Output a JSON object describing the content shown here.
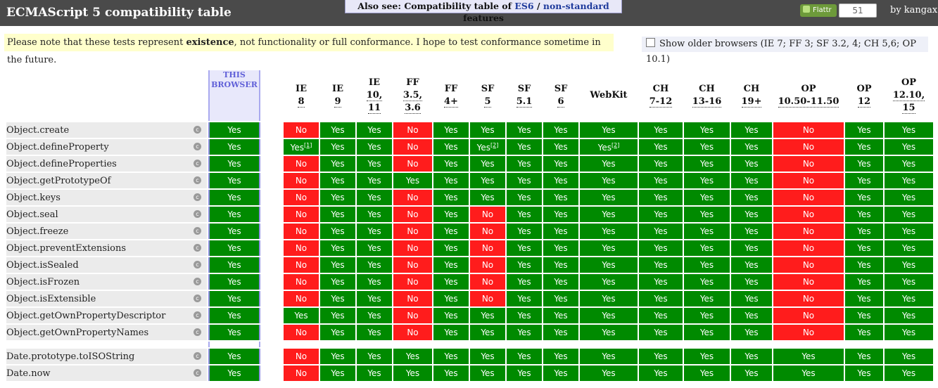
{
  "header": {
    "title": "ECMAScript 5 compatibility table",
    "also_see_prefix": "Also see: Compatibility table of ",
    "also_see_es6": "ES6",
    "also_see_sep": " / ",
    "also_see_nonstandard": "non-standard",
    "also_see_suffix": " features",
    "flattr_label": "Flattr",
    "flattr_count": "51",
    "byline": "by kangax"
  },
  "note": {
    "prefix": "Please note that these tests represent ",
    "emphasis": "existence",
    "suffix": ", not functionality or full conformance. I hope to test conformance sometime in the future."
  },
  "older_browsers": {
    "label": "Show older browsers (IE 7; FF 3; SF 3.2, 4; CH 5,6; OP 10.1)"
  },
  "columns": [
    {
      "id": "this",
      "lines": [
        "THIS",
        "BROWSER"
      ]
    },
    {
      "id": "ie8",
      "lines": [
        "IE",
        "8"
      ]
    },
    {
      "id": "ie9",
      "lines": [
        "IE",
        "9"
      ]
    },
    {
      "id": "ie10",
      "lines": [
        "IE",
        "10,",
        "11"
      ]
    },
    {
      "id": "ff35",
      "lines": [
        "FF",
        "3.5,",
        "3.6"
      ]
    },
    {
      "id": "ff4",
      "lines": [
        "FF",
        "4+"
      ]
    },
    {
      "id": "sf5",
      "lines": [
        "SF",
        "5"
      ]
    },
    {
      "id": "sf51",
      "lines": [
        "SF",
        "5.1"
      ]
    },
    {
      "id": "sf6",
      "lines": [
        "SF",
        "6"
      ]
    },
    {
      "id": "webkit",
      "lines": [
        "WebKit"
      ]
    },
    {
      "id": "ch7",
      "lines": [
        "CH",
        "7-12"
      ]
    },
    {
      "id": "ch13",
      "lines": [
        "CH",
        "13-16"
      ]
    },
    {
      "id": "ch19",
      "lines": [
        "CH",
        "19+"
      ]
    },
    {
      "id": "op1050",
      "lines": [
        "OP",
        "10.50-11.50"
      ]
    },
    {
      "id": "op12",
      "lines": [
        "OP",
        "12"
      ]
    },
    {
      "id": "op1210",
      "lines": [
        "OP",
        "12.10,",
        "15"
      ]
    }
  ],
  "rows": [
    {
      "name": "Object.create",
      "cells": [
        "Yes",
        "No",
        "Yes",
        "Yes",
        "No",
        "Yes",
        "Yes",
        "Yes",
        "Yes",
        "Yes",
        "Yes",
        "Yes",
        "Yes",
        "No",
        "Yes",
        "Yes"
      ]
    },
    {
      "name": "Object.defineProperty",
      "cells": [
        "Yes",
        "Yes[1]",
        "Yes",
        "Yes",
        "No",
        "Yes",
        "Yes[2]",
        "Yes",
        "Yes",
        "Yes[2]",
        "Yes",
        "Yes",
        "Yes",
        "No",
        "Yes",
        "Yes"
      ]
    },
    {
      "name": "Object.defineProperties",
      "cells": [
        "Yes",
        "No",
        "Yes",
        "Yes",
        "No",
        "Yes",
        "Yes",
        "Yes",
        "Yes",
        "Yes",
        "Yes",
        "Yes",
        "Yes",
        "No",
        "Yes",
        "Yes"
      ]
    },
    {
      "name": "Object.getPrototypeOf",
      "cells": [
        "Yes",
        "No",
        "Yes",
        "Yes",
        "Yes",
        "Yes",
        "Yes",
        "Yes",
        "Yes",
        "Yes",
        "Yes",
        "Yes",
        "Yes",
        "No",
        "Yes",
        "Yes"
      ]
    },
    {
      "name": "Object.keys",
      "cells": [
        "Yes",
        "No",
        "Yes",
        "Yes",
        "No",
        "Yes",
        "Yes",
        "Yes",
        "Yes",
        "Yes",
        "Yes",
        "Yes",
        "Yes",
        "No",
        "Yes",
        "Yes"
      ]
    },
    {
      "name": "Object.seal",
      "cells": [
        "Yes",
        "No",
        "Yes",
        "Yes",
        "No",
        "Yes",
        "No",
        "Yes",
        "Yes",
        "Yes",
        "Yes",
        "Yes",
        "Yes",
        "No",
        "Yes",
        "Yes"
      ]
    },
    {
      "name": "Object.freeze",
      "cells": [
        "Yes",
        "No",
        "Yes",
        "Yes",
        "No",
        "Yes",
        "No",
        "Yes",
        "Yes",
        "Yes",
        "Yes",
        "Yes",
        "Yes",
        "No",
        "Yes",
        "Yes"
      ]
    },
    {
      "name": "Object.preventExtensions",
      "cells": [
        "Yes",
        "No",
        "Yes",
        "Yes",
        "No",
        "Yes",
        "No",
        "Yes",
        "Yes",
        "Yes",
        "Yes",
        "Yes",
        "Yes",
        "No",
        "Yes",
        "Yes"
      ]
    },
    {
      "name": "Object.isSealed",
      "cells": [
        "Yes",
        "No",
        "Yes",
        "Yes",
        "No",
        "Yes",
        "No",
        "Yes",
        "Yes",
        "Yes",
        "Yes",
        "Yes",
        "Yes",
        "No",
        "Yes",
        "Yes"
      ]
    },
    {
      "name": "Object.isFrozen",
      "cells": [
        "Yes",
        "No",
        "Yes",
        "Yes",
        "No",
        "Yes",
        "No",
        "Yes",
        "Yes",
        "Yes",
        "Yes",
        "Yes",
        "Yes",
        "No",
        "Yes",
        "Yes"
      ]
    },
    {
      "name": "Object.isExtensible",
      "cells": [
        "Yes",
        "No",
        "Yes",
        "Yes",
        "No",
        "Yes",
        "No",
        "Yes",
        "Yes",
        "Yes",
        "Yes",
        "Yes",
        "Yes",
        "No",
        "Yes",
        "Yes"
      ]
    },
    {
      "name": "Object.getOwnPropertyDescriptor",
      "cells": [
        "Yes",
        "Yes",
        "Yes",
        "Yes",
        "No",
        "Yes",
        "Yes",
        "Yes",
        "Yes",
        "Yes",
        "Yes",
        "Yes",
        "Yes",
        "No",
        "Yes",
        "Yes"
      ]
    },
    {
      "name": "Object.getOwnPropertyNames",
      "cells": [
        "Yes",
        "No",
        "Yes",
        "Yes",
        "No",
        "Yes",
        "Yes",
        "Yes",
        "Yes",
        "Yes",
        "Yes",
        "Yes",
        "Yes",
        "No",
        "Yes",
        "Yes"
      ]
    },
    {
      "gap": true
    },
    {
      "name": "Date.prototype.toISOString",
      "cells": [
        "Yes",
        "No",
        "Yes",
        "Yes",
        "Yes",
        "Yes",
        "Yes",
        "Yes",
        "Yes",
        "Yes",
        "Yes",
        "Yes",
        "Yes",
        "Yes",
        "Yes",
        "Yes"
      ]
    },
    {
      "name": "Date.now",
      "cells": [
        "Yes",
        "No",
        "Yes",
        "Yes",
        "Yes",
        "Yes",
        "Yes",
        "Yes",
        "Yes",
        "Yes",
        "Yes",
        "Yes",
        "Yes",
        "Yes",
        "Yes",
        "Yes"
      ]
    }
  ],
  "row_icon": "c-icon",
  "colors": {
    "yes": "#008a00",
    "no": "#ff1c1c",
    "header": "#4a4a4a",
    "note": "#ffffcc"
  }
}
